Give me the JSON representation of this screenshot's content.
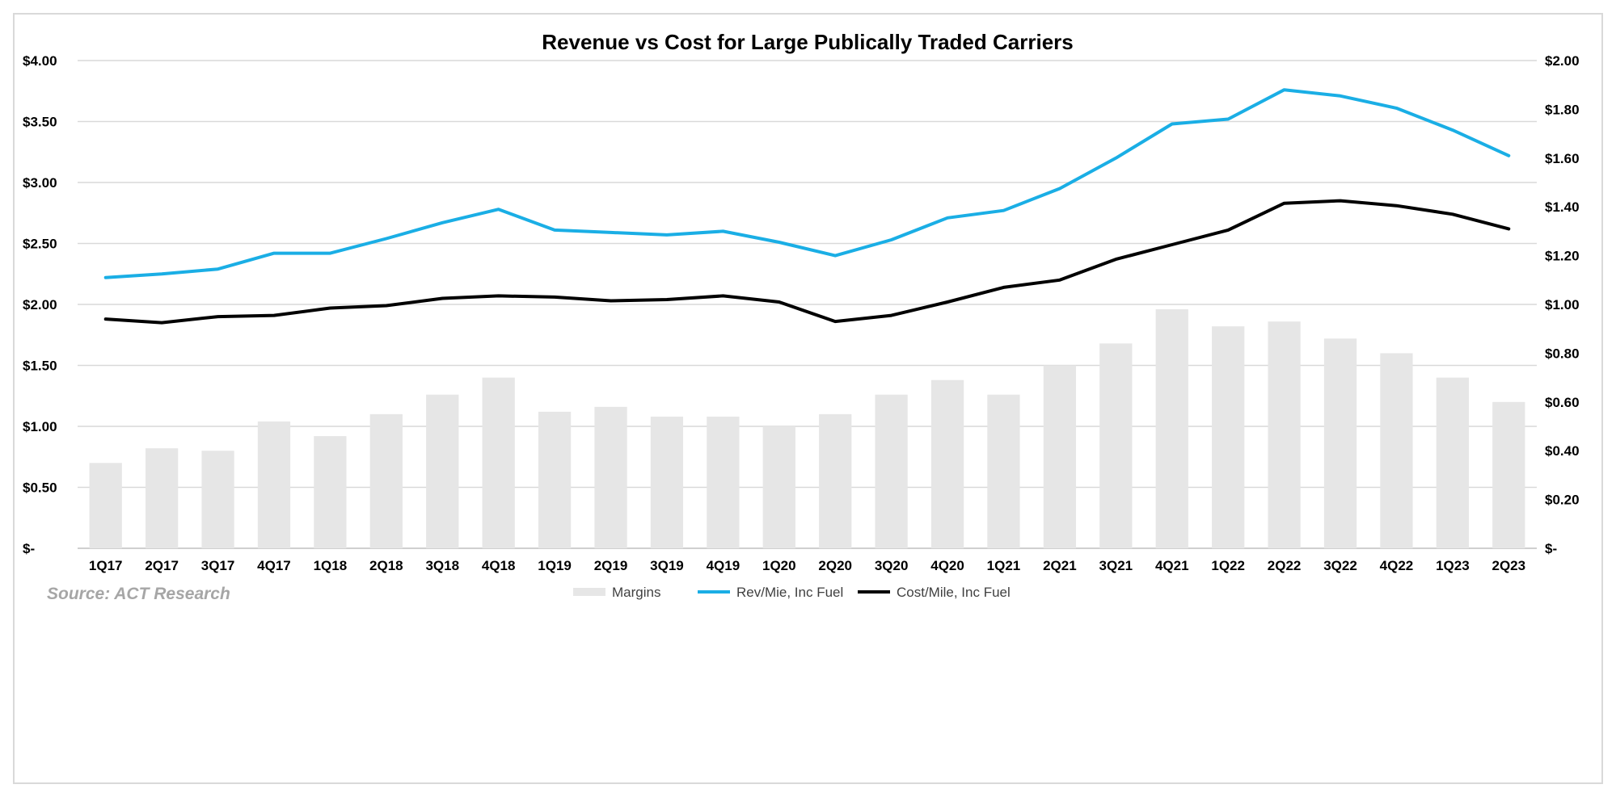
{
  "chart_data": {
    "type": "bar",
    "title": "Revenue vs Cost for Large Publically Traded Carriers",
    "categories": [
      "1Q17",
      "2Q17",
      "3Q17",
      "4Q17",
      "1Q18",
      "2Q18",
      "3Q18",
      "4Q18",
      "1Q19",
      "2Q19",
      "3Q19",
      "4Q19",
      "1Q20",
      "2Q20",
      "3Q20",
      "4Q20",
      "1Q21",
      "2Q21",
      "3Q21",
      "4Q21",
      "1Q22",
      "2Q22",
      "3Q22",
      "4Q22",
      "1Q23",
      "2Q23"
    ],
    "left_axis": {
      "ylim": [
        0,
        4
      ],
      "tick_values": [
        0,
        0.5,
        1,
        1.5,
        2,
        2.5,
        3,
        3.5,
        4
      ],
      "tick_labels": [
        "$-",
        "$0.50",
        "$1.00",
        "$1.50",
        "$2.00",
        "$2.50",
        "$3.00",
        "$3.50",
        "$4.00"
      ]
    },
    "right_axis": {
      "ylim": [
        0,
        2
      ],
      "tick_values": [
        0,
        0.2,
        0.4,
        0.6,
        0.8,
        1.0,
        1.2,
        1.4,
        1.6,
        1.8,
        2.0
      ],
      "tick_labels": [
        "$-",
        "$0.20",
        "$0.40",
        "$0.60",
        "$0.80",
        "$1.00",
        "$1.20",
        "$1.40",
        "$1.60",
        "$1.80",
        "$2.00"
      ]
    },
    "grid": "horizontal",
    "legend_position": "bottom",
    "series": [
      {
        "name": "Margins",
        "kind": "bar",
        "axis": "right",
        "color": "#e6e6e6",
        "values": [
          0.35,
          0.41,
          0.4,
          0.52,
          0.46,
          0.55,
          0.63,
          0.7,
          0.56,
          0.58,
          0.54,
          0.54,
          0.5,
          0.55,
          0.63,
          0.69,
          0.63,
          0.75,
          0.84,
          0.98,
          0.91,
          0.93,
          0.86,
          0.8,
          0.7,
          0.6
        ]
      },
      {
        "name": "Rev/Mie, Inc Fuel",
        "kind": "line",
        "axis": "left",
        "color": "#1aaee5",
        "values": [
          2.22,
          2.25,
          2.29,
          2.42,
          2.42,
          2.54,
          2.67,
          2.78,
          2.61,
          2.59,
          2.57,
          2.6,
          2.51,
          2.4,
          2.53,
          2.71,
          2.77,
          2.95,
          3.2,
          3.48,
          3.52,
          3.76,
          3.71,
          3.61,
          3.43,
          3.22
        ]
      },
      {
        "name": "Cost/Mile, Inc Fuel",
        "kind": "line",
        "axis": "left",
        "color": "#000000",
        "values": [
          1.88,
          1.85,
          1.9,
          1.91,
          1.97,
          1.99,
          2.05,
          2.07,
          2.06,
          2.03,
          2.04,
          2.07,
          2.02,
          1.86,
          1.91,
          2.02,
          2.14,
          2.2,
          2.37,
          2.49,
          2.61,
          2.83,
          2.85,
          2.81,
          2.74,
          2.62
        ]
      }
    ],
    "source": "Source: ACT Research"
  }
}
